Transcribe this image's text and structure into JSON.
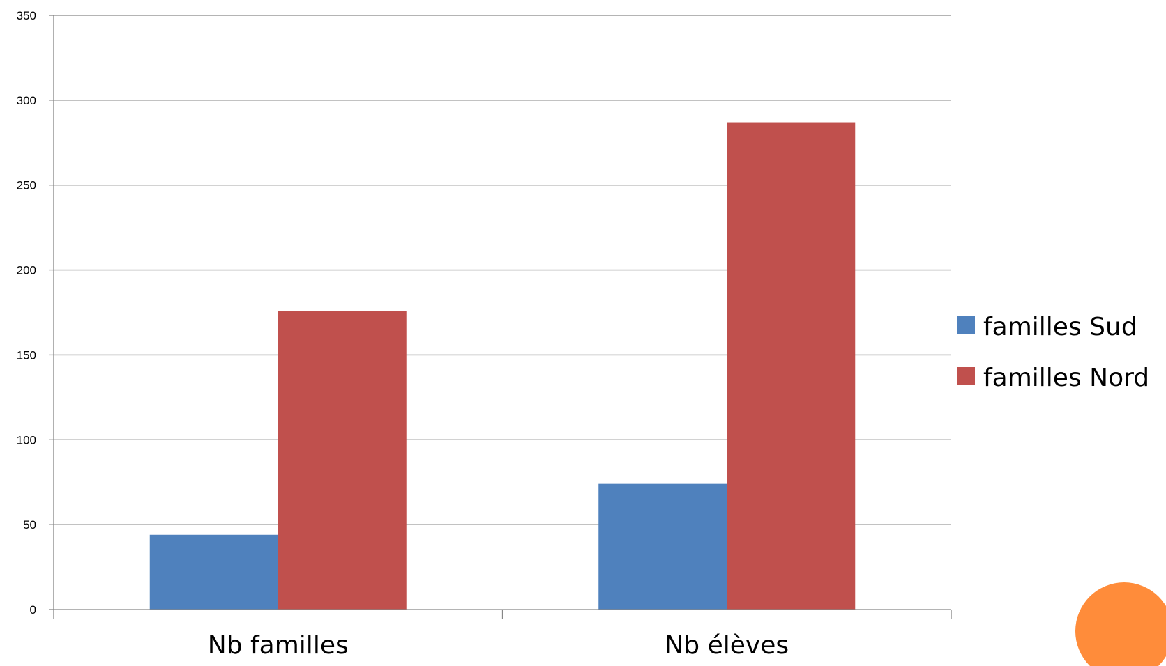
{
  "chart_data": {
    "type": "bar",
    "categories": [
      "Nb familles",
      "Nb élèves"
    ],
    "series": [
      {
        "name": "familles Sud",
        "values": [
          44,
          74
        ],
        "color": "#4F81BD"
      },
      {
        "name": "familles Nord",
        "values": [
          176,
          287
        ],
        "color": "#C0504D"
      }
    ],
    "ylim": [
      0,
      350
    ],
    "yticks": [
      0,
      50,
      100,
      150,
      200,
      250,
      300,
      350
    ],
    "grid": true,
    "legend_placement": "right",
    "title": "",
    "xlabel": "",
    "ylabel": ""
  },
  "decoration": {
    "corner_circle_color": "#FF8C3A"
  }
}
